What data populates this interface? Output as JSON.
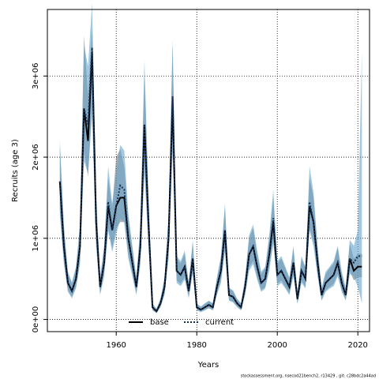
{
  "chart_data": {
    "type": "line_band",
    "xlabel": "Years",
    "ylabel": "Recruits (age 3)",
    "footer": "stockassessment.org, nsecod21bench2, r13429 , git: c28bdc2a44ad",
    "x": [
      1946,
      1947,
      1948,
      1949,
      1950,
      1951,
      1952,
      1953,
      1954,
      1955,
      1956,
      1957,
      1958,
      1959,
      1960,
      1961,
      1962,
      1963,
      1964,
      1965,
      1966,
      1967,
      1968,
      1969,
      1970,
      1971,
      1972,
      1973,
      1974,
      1975,
      1976,
      1977,
      1978,
      1979,
      1980,
      1981,
      1982,
      1983,
      1984,
      1985,
      1986,
      1987,
      1988,
      1989,
      1990,
      1991,
      1992,
      1993,
      1994,
      1995,
      1996,
      1997,
      1998,
      1999,
      2000,
      2001,
      2002,
      2003,
      2004,
      2005,
      2006,
      2007,
      2008,
      2009,
      2010,
      2011,
      2012,
      2013,
      2014,
      2015,
      2016,
      2017,
      2018,
      2019,
      2020,
      2021
    ],
    "series": [
      {
        "name": "base",
        "color": "#000000",
        "band_color": "rgba(110,110,110,0.55)",
        "dash": "solid",
        "values": [
          1700000.0,
          900000.0,
          450000.0,
          350000.0,
          500000.0,
          900000.0,
          2600000.0,
          2200000.0,
          3300000.0,
          1200000.0,
          400000.0,
          700000.0,
          1400000.0,
          1100000.0,
          1400000.0,
          1500000.0,
          1500000.0,
          1000000.0,
          700000.0,
          400000.0,
          900000.0,
          2400000.0,
          1200000.0,
          150000.0,
          100000.0,
          200000.0,
          400000.0,
          1000000.0,
          2700000.0,
          600000.0,
          550000.0,
          650000.0,
          350000.0,
          750000.0,
          150000.0,
          120000.0,
          150000.0,
          180000.0,
          150000.0,
          400000.0,
          600000.0,
          1100000.0,
          300000.0,
          280000.0,
          200000.0,
          150000.0,
          400000.0,
          800000.0,
          900000.0,
          650000.0,
          450000.0,
          500000.0,
          800000.0,
          1200000.0,
          550000.0,
          600000.0,
          500000.0,
          400000.0,
          700000.0,
          250000.0,
          600000.0,
          500000.0,
          1400000.0,
          1200000.0,
          700000.0,
          300000.0,
          450000.0,
          500000.0,
          550000.0,
          700000.0,
          450000.0,
          300000.0,
          750000.0,
          600000.0,
          650000.0,
          650000.0
        ],
        "lower": [
          1360000.0,
          720000.0,
          360000.0,
          280000.0,
          400000.0,
          720000.0,
          2080000.0,
          1760000.0,
          2640000.0,
          960000.0,
          320000.0,
          560000.0,
          1120000.0,
          880000.0,
          1120000.0,
          1200000.0,
          1200000.0,
          800000.0,
          560000.0,
          320000.0,
          720000.0,
          1920000.0,
          960000.0,
          120000.0,
          80000.0,
          160000.0,
          320000.0,
          800000.0,
          2160000.0,
          480000.0,
          440000.0,
          520000.0,
          280000.0,
          600000.0,
          120000.0,
          100000.0,
          120000.0,
          140000.0,
          120000.0,
          320000.0,
          480000.0,
          880000.0,
          240000.0,
          220000.0,
          160000.0,
          120000.0,
          320000.0,
          640000.0,
          720000.0,
          520000.0,
          360000.0,
          400000.0,
          640000.0,
          960000.0,
          440000.0,
          480000.0,
          400000.0,
          320000.0,
          560000.0,
          200000.0,
          480000.0,
          400000.0,
          1120000.0,
          960000.0,
          560000.0,
          240000.0,
          360000.0,
          400000.0,
          440000.0,
          560000.0,
          360000.0,
          240000.0,
          600000.0,
          480000.0,
          520000.0,
          520000.0
        ],
        "upper": [
          2130000.0,
          1130000.0,
          560000.0,
          440000.0,
          630000.0,
          1130000.0,
          3500000.0,
          2750000.0,
          3600000.0,
          1500000.0,
          500000.0,
          880000.0,
          1750000.0,
          1380000.0,
          2000000.0,
          2100000.0,
          1880000.0,
          1250000.0,
          880000.0,
          500000.0,
          1130000.0,
          3000000.0,
          1500000.0,
          190000.0,
          130000.0,
          250000.0,
          500000.0,
          1250000.0,
          3380000.0,
          750000.0,
          690000.0,
          810000.0,
          440000.0,
          940000.0,
          190000.0,
          150000.0,
          190000.0,
          230000.0,
          190000.0,
          500000.0,
          750000.0,
          1380000.0,
          380000.0,
          350000.0,
          250000.0,
          190000.0,
          500000.0,
          1000000.0,
          1130000.0,
          810000.0,
          560000.0,
          630000.0,
          1000000.0,
          1500000.0,
          690000.0,
          750000.0,
          630000.0,
          500000.0,
          880000.0,
          310000.0,
          750000.0,
          630000.0,
          1750000.0,
          1500000.0,
          880000.0,
          380000.0,
          560000.0,
          630000.0,
          690000.0,
          880000.0,
          560000.0,
          380000.0,
          940000.0,
          750000.0,
          810000.0,
          810000.0
        ]
      },
      {
        "name": "current",
        "color": "#16305a",
        "band_color": "rgba(100,165,205,0.6)",
        "dash": "dotted",
        "values": [
          1700000.0,
          900000.0,
          450000.0,
          350000.0,
          500000.0,
          900000.0,
          2600000.0,
          2400000.0,
          3350000.0,
          1200000.0,
          400000.0,
          700000.0,
          1450000.0,
          1100000.0,
          1400000.0,
          1650000.0,
          1600000.0,
          1000000.0,
          700000.0,
          400000.0,
          900000.0,
          2400000.0,
          1200000.0,
          150000.0,
          100000.0,
          200000.0,
          400000.0,
          1000000.0,
          2750000.0,
          600000.0,
          550000.0,
          650000.0,
          350000.0,
          750000.0,
          150000.0,
          120000.0,
          150000.0,
          180000.0,
          150000.0,
          400000.0,
          600000.0,
          1100000.0,
          300000.0,
          280000.0,
          200000.0,
          150000.0,
          400000.0,
          800000.0,
          900000.0,
          650000.0,
          450000.0,
          500000.0,
          800000.0,
          1250000.0,
          550000.0,
          600000.0,
          500000.0,
          400000.0,
          700000.0,
          250000.0,
          600000.0,
          500000.0,
          1450000.0,
          1200000.0,
          700000.0,
          300000.0,
          450000.0,
          500000.0,
          550000.0,
          700000.0,
          450000.0,
          300000.0,
          750000.0,
          700000.0,
          780000.0,
          780000.0
        ],
        "lower": [
          1280000.0,
          680000.0,
          340000.0,
          260000.0,
          380000.0,
          680000.0,
          1950000.0,
          1800000.0,
          2510000.0,
          900000.0,
          300000.0,
          530000.0,
          1090000.0,
          830000.0,
          1050000.0,
          1240000.0,
          1200000.0,
          750000.0,
          530000.0,
          300000.0,
          680000.0,
          1800000.0,
          900000.0,
          110000.0,
          80000.0,
          150000.0,
          300000.0,
          750000.0,
          2060000.0,
          450000.0,
          410000.0,
          490000.0,
          260000.0,
          560000.0,
          110000.0,
          90000.0,
          110000.0,
          140000.0,
          110000.0,
          300000.0,
          450000.0,
          830000.0,
          230000.0,
          210000.0,
          150000.0,
          110000.0,
          300000.0,
          600000.0,
          680000.0,
          490000.0,
          340000.0,
          380000.0,
          600000.0,
          940000.0,
          410000.0,
          450000.0,
          380000.0,
          300000.0,
          530000.0,
          190000.0,
          450000.0,
          380000.0,
          1090000.0,
          900000.0,
          530000.0,
          230000.0,
          340000.0,
          380000.0,
          410000.0,
          530000.0,
          340000.0,
          230000.0,
          560000.0,
          530000.0,
          400000.0,
          200000.0
        ],
        "upper": [
          2210000.0,
          1170000.0,
          590000.0,
          460000.0,
          650000.0,
          1170000.0,
          3380000.0,
          3120000.0,
          3900000.0,
          1560000.0,
          520000.0,
          910000.0,
          1890000.0,
          1430000.0,
          1820000.0,
          2150000.0,
          2080000.0,
          1300000.0,
          910000.0,
          520000.0,
          1170000.0,
          3200000.0,
          1560000.0,
          200000.0,
          130000.0,
          260000.0,
          520000.0,
          1300000.0,
          3450000.0,
          780000.0,
          720000.0,
          850000.0,
          460000.0,
          980000.0,
          200000.0,
          160000.0,
          200000.0,
          230000.0,
          200000.0,
          520000.0,
          780000.0,
          1430000.0,
          390000.0,
          360000.0,
          260000.0,
          200000.0,
          520000.0,
          1040000.0,
          1170000.0,
          850000.0,
          590000.0,
          650000.0,
          1040000.0,
          1600000.0,
          720000.0,
          780000.0,
          650000.0,
          520000.0,
          910000.0,
          330000.0,
          780000.0,
          650000.0,
          1890000.0,
          1560000.0,
          910000.0,
          390000.0,
          590000.0,
          650000.0,
          720000.0,
          910000.0,
          590000.0,
          390000.0,
          980000.0,
          910000.0,
          1100000.0,
          3300000.0
        ]
      }
    ],
    "xlim": [
      1942.9,
      2022.9
    ],
    "xticks": [
      1960,
      1980,
      2000,
      2020
    ],
    "ylim": [
      -150000,
      3820000
    ],
    "yticks": [
      {
        "value": 0,
        "label": "0e+00"
      },
      {
        "value": 1000000,
        "label": "1e+06"
      },
      {
        "value": 2000000,
        "label": "2e+06"
      },
      {
        "value": 3000000,
        "label": "3e+06"
      }
    ],
    "grid": true,
    "legend_position": "bottom"
  }
}
